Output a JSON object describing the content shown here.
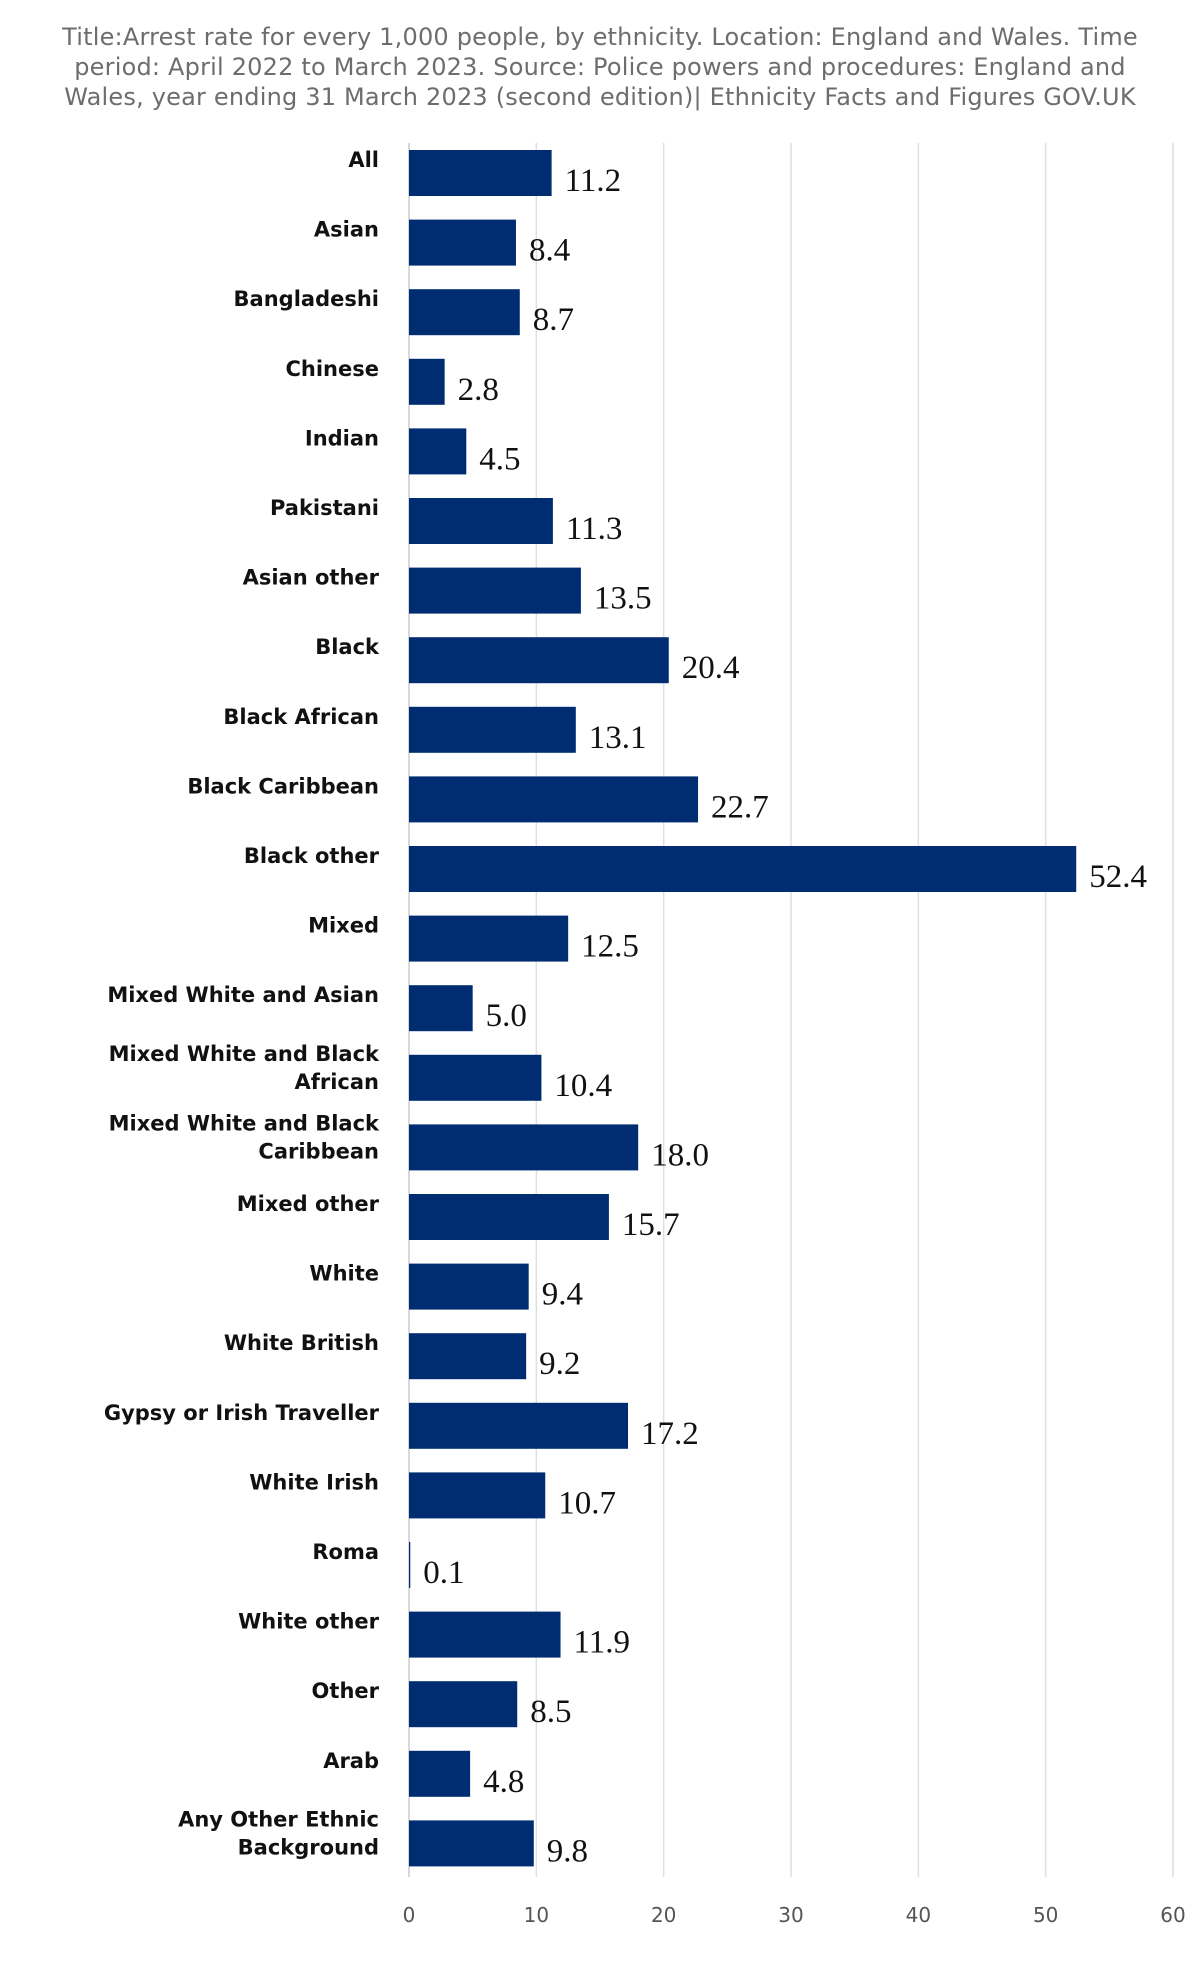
{
  "chart_data": {
    "type": "bar",
    "orientation": "horizontal",
    "title": "Title:Arrest rate for every 1,000 people, by ethnicity. Location: England and Wales. Time period: April 2022 to March 2023. Source: Police powers and procedures: England and Wales, year ending 31 March 2023 (second edition)| Ethnicity Facts and Figures GOV.UK",
    "xlabel": "",
    "ylabel": "",
    "xlim": [
      0,
      60
    ],
    "xticks": [
      0,
      10,
      20,
      30,
      40,
      50,
      60
    ],
    "grid": "vertical",
    "legend": "none",
    "bar_color": "#002d72",
    "categories": [
      "All",
      "Asian",
      "Bangladeshi",
      "Chinese",
      "Indian",
      "Pakistani",
      "Asian other",
      "Black",
      "Black African",
      "Black Caribbean",
      "Black other",
      "Mixed",
      "Mixed White and Asian",
      "Mixed White and Black African",
      "Mixed White and Black Caribbean",
      "Mixed other",
      "White",
      "White British",
      "Gypsy or Irish Traveller",
      "White Irish",
      "Roma",
      "White other",
      "Other",
      "Arab",
      "Any Other Ethnic Background"
    ],
    "values": [
      11.2,
      8.4,
      8.7,
      2.8,
      4.5,
      11.3,
      13.5,
      20.4,
      13.1,
      22.7,
      52.4,
      12.5,
      5.0,
      10.4,
      18.0,
      15.7,
      9.4,
      9.2,
      17.2,
      10.7,
      0.1,
      11.9,
      8.5,
      4.8,
      9.8
    ],
    "value_labels": [
      "11.2",
      "8.4",
      "8.7",
      "2.8",
      "4.5",
      "11.3",
      "13.5",
      "20.4",
      "13.1",
      "22.7",
      "52.4",
      "12.5",
      "5.0",
      "10.4",
      "18.0",
      "15.7",
      "9.4",
      "9.2",
      "17.2",
      "10.7",
      "0.1",
      "11.9",
      "8.5",
      "4.8",
      "9.8"
    ]
  }
}
